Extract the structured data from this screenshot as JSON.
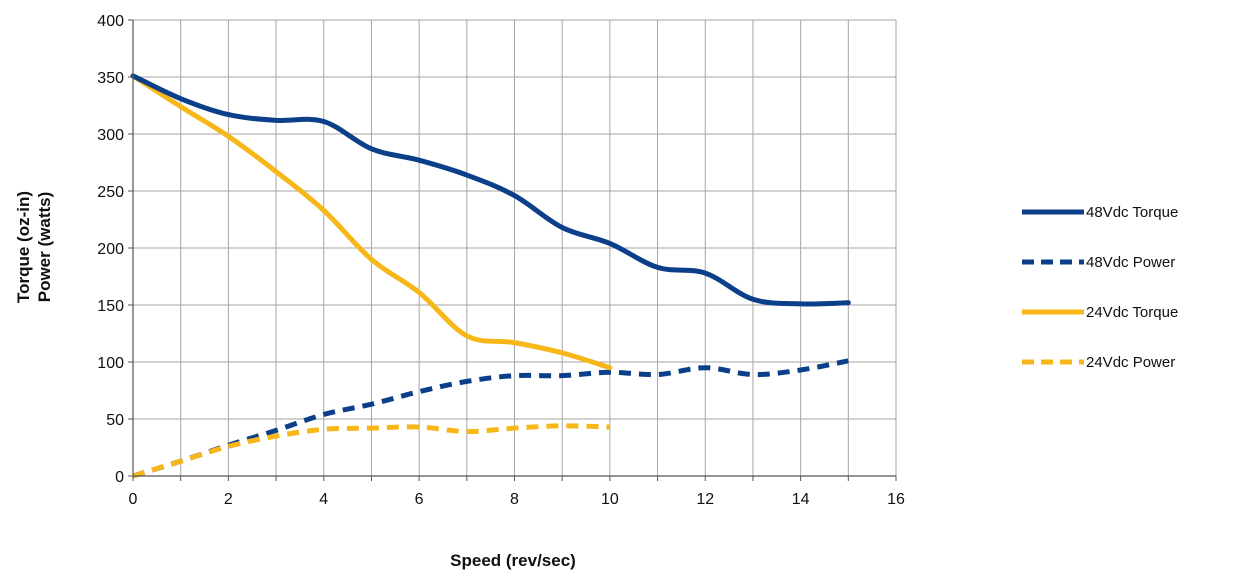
{
  "chart_data": {
    "type": "line",
    "title": "",
    "xlabel": "Speed (rev/sec)",
    "ylabel_lines": [
      "Torque  (oz-in)",
      "Power (watts)"
    ],
    "xlim": [
      0,
      16
    ],
    "ylim": [
      0,
      400
    ],
    "x_ticks": [
      0,
      2,
      4,
      6,
      8,
      10,
      12,
      14,
      16
    ],
    "y_ticks": [
      0,
      50,
      100,
      150,
      200,
      250,
      300,
      350,
      400
    ],
    "grid": true,
    "legend_position": "right",
    "series": [
      {
        "name": "48Vdc Torque",
        "color": "#0b3f8a",
        "dashed": false,
        "x": [
          0,
          1,
          2,
          3,
          4,
          5,
          6,
          7,
          8,
          9,
          10,
          11,
          12,
          13,
          14,
          15
        ],
        "y": [
          351,
          331,
          317,
          312,
          311,
          287,
          277,
          264,
          246,
          218,
          204,
          183,
          178,
          155,
          151,
          152
        ]
      },
      {
        "name": "48Vdc Power",
        "color": "#0b3f8a",
        "dashed": true,
        "x": [
          0,
          1,
          2,
          3,
          4,
          5,
          6,
          7,
          8,
          9,
          10,
          11,
          12,
          13,
          14,
          15
        ],
        "y": [
          0,
          13,
          27,
          40,
          54,
          63,
          74,
          83,
          88,
          88,
          91,
          89,
          95,
          89,
          93,
          101
        ]
      },
      {
        "name": "24Vdc Torque",
        "color": "#f7b718",
        "dashed": false,
        "x": [
          0,
          1,
          2,
          3,
          4,
          5,
          6,
          7,
          8,
          9,
          10
        ],
        "y": [
          351,
          324,
          298,
          267,
          233,
          190,
          161,
          123,
          117,
          108,
          95
        ]
      },
      {
        "name": "24Vdc Power",
        "color": "#f7b718",
        "dashed": true,
        "x": [
          0,
          1,
          2,
          3,
          4,
          5,
          6,
          7,
          8,
          9,
          10
        ],
        "y": [
          0,
          13,
          26,
          35,
          41,
          42,
          43,
          39,
          42,
          44,
          43
        ]
      }
    ]
  }
}
